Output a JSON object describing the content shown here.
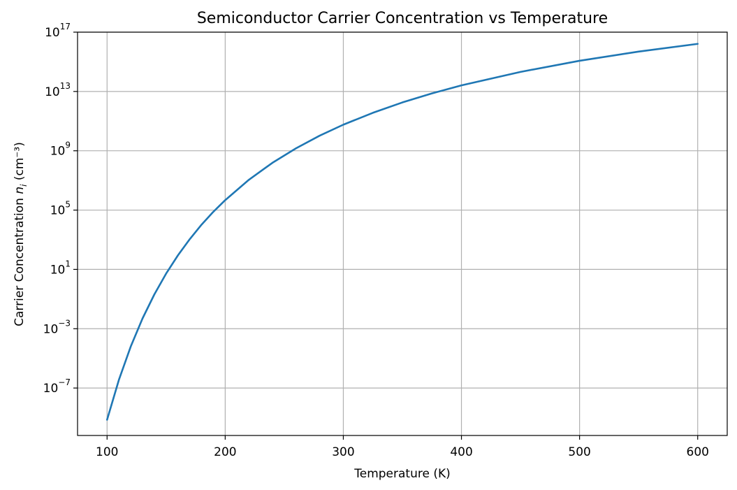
{
  "chart_data": {
    "type": "line",
    "title": "Semiconductor Carrier Concentration vs Temperature",
    "xlabel": "Temperature (K)",
    "ylabel": {
      "prefix": "Carrier Concentration ",
      "symbol": "n",
      "subscript": "i",
      "suffix": " (cm⁻³)"
    },
    "xlim": [
      75,
      625
    ],
    "ylim_exponent": [
      -10.2,
      17
    ],
    "y_scale": "log",
    "grid": true,
    "x_ticks": [
      {
        "value": 100,
        "label": "100"
      },
      {
        "value": 200,
        "label": "200"
      },
      {
        "value": 300,
        "label": "300"
      },
      {
        "value": 400,
        "label": "400"
      },
      {
        "value": 500,
        "label": "500"
      },
      {
        "value": 600,
        "label": "600"
      }
    ],
    "y_ticks": [
      {
        "exponent": -7,
        "base": "10",
        "sup": "−7"
      },
      {
        "exponent": -3,
        "base": "10",
        "sup": "−3"
      },
      {
        "exponent": 1,
        "base": "10",
        "sup": "1"
      },
      {
        "exponent": 5,
        "base": "10",
        "sup": "5"
      },
      {
        "exponent": 9,
        "base": "10",
        "sup": "9"
      },
      {
        "exponent": 13,
        "base": "10",
        "sup": "13"
      },
      {
        "exponent": 17,
        "base": "10",
        "sup": "17"
      }
    ],
    "series": [
      {
        "color": "#1f77b4",
        "x": [
          100,
          110,
          120,
          130,
          140,
          150,
          160,
          170,
          180,
          190,
          200,
          220,
          240,
          260,
          280,
          300,
          325,
          350,
          375,
          400,
          450,
          500,
          550,
          600
        ],
        "log10_y": [
          -9.14,
          -6.45,
          -4.21,
          -2.31,
          -0.69,
          0.72,
          1.95,
          3.04,
          4.02,
          4.89,
          5.67,
          7.04,
          8.19,
          9.17,
          10.02,
          10.76,
          11.56,
          12.26,
          12.87,
          13.41,
          14.32,
          15.07,
          15.69,
          16.21
        ]
      }
    ]
  }
}
